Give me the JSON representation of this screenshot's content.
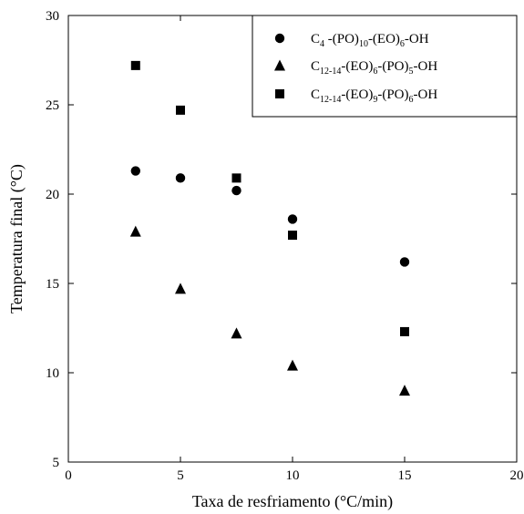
{
  "chart_data": {
    "type": "scatter",
    "title": "",
    "xlabel": "Taxa de resfriamento (°C/min)",
    "ylabel": "Temperatura final (°C)",
    "xlim": [
      0,
      20
    ],
    "ylim": [
      5,
      30
    ],
    "xticks": [
      0,
      5,
      10,
      15,
      20
    ],
    "yticks": [
      5,
      10,
      15,
      20,
      25,
      30
    ],
    "x_tick_labels": [
      "0",
      "5",
      "10",
      "15",
      "20"
    ],
    "y_tick_labels": [
      "5",
      "10",
      "15",
      "20",
      "25",
      "30"
    ],
    "grid": false,
    "legend_position": "top-right",
    "series": [
      {
        "name": "C4-(PO)10-(EO)6-OH",
        "name_parts": [
          {
            "t": "C",
            "sub": false
          },
          {
            "t": "4",
            "sub": true
          },
          {
            "t": " -(PO)",
            "sub": false
          },
          {
            "t": "10",
            "sub": true
          },
          {
            "t": "-(EO)",
            "sub": false
          },
          {
            "t": "6",
            "sub": true
          },
          {
            "t": "-OH",
            "sub": false
          }
        ],
        "marker": "circle",
        "points": [
          [
            3,
            21.3
          ],
          [
            5,
            20.9
          ],
          [
            7.5,
            20.2
          ],
          [
            10,
            18.6
          ],
          [
            15,
            16.2
          ]
        ]
      },
      {
        "name": "C12-14-(EO)6-(PO)5-OH",
        "name_parts": [
          {
            "t": "C",
            "sub": false
          },
          {
            "t": "12-14",
            "sub": true
          },
          {
            "t": "-(EO)",
            "sub": false
          },
          {
            "t": "6",
            "sub": true
          },
          {
            "t": "-(PO)",
            "sub": false
          },
          {
            "t": "5",
            "sub": true
          },
          {
            "t": "-OH",
            "sub": false
          }
        ],
        "marker": "triangle",
        "points": [
          [
            3,
            17.9
          ],
          [
            5,
            14.7
          ],
          [
            7.5,
            12.2
          ],
          [
            10,
            10.4
          ],
          [
            15,
            9.0
          ]
        ]
      },
      {
        "name": "C12-14-(EO)9-(PO)6-OH",
        "name_parts": [
          {
            "t": "C",
            "sub": false
          },
          {
            "t": "12-14",
            "sub": true
          },
          {
            "t": "-(EO)",
            "sub": false
          },
          {
            "t": "9",
            "sub": true
          },
          {
            "t": "-(PO)",
            "sub": false
          },
          {
            "t": "6",
            "sub": true
          },
          {
            "t": "-OH",
            "sub": false
          }
        ],
        "marker": "square",
        "points": [
          [
            3,
            27.2
          ],
          [
            5,
            24.7
          ],
          [
            7.5,
            20.9
          ],
          [
            10,
            17.7
          ],
          [
            15,
            12.3
          ]
        ]
      }
    ],
    "colors": {
      "marker": "#000000",
      "axis": "#000000",
      "background": "#ffffff"
    }
  }
}
